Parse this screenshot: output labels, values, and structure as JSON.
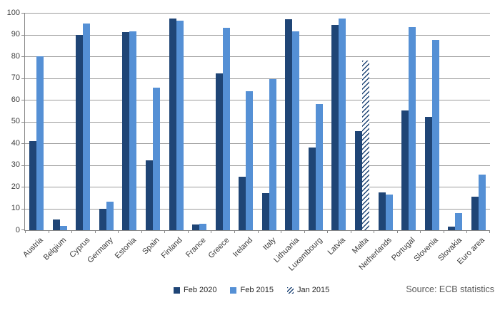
{
  "chart_data": {
    "type": "bar",
    "title": "",
    "xlabel": "",
    "ylabel": "",
    "categories": [
      "Austria",
      "Belgium",
      "Cyprus",
      "Germany",
      "Estonia",
      "Spain",
      "Finland",
      "France",
      "Greece",
      "Ireland",
      "Italy",
      "Lithuania",
      "Luxembourg",
      "Latvia",
      "Malta",
      "Netherlands",
      "Portugal",
      "Slovenia",
      "Slovakia",
      "Euro area"
    ],
    "series": [
      {
        "name": "Feb 2020",
        "color": "#1F4576",
        "pattern": "solid",
        "values": [
          41,
          5,
          90,
          10,
          91,
          32,
          97.5,
          2.5,
          72,
          24.5,
          17,
          97,
          38,
          94.5,
          45.5,
          17.5,
          55,
          52,
          1.5,
          15.5
        ]
      },
      {
        "name": "Feb 2015",
        "color": "#5590D5",
        "pattern": "solid",
        "values": [
          80,
          2,
          95,
          13,
          91.5,
          65.5,
          96.5,
          3,
          93,
          64,
          69.5,
          91.5,
          58,
          97.5,
          null,
          16.5,
          93.5,
          87.5,
          8,
          25.5
        ]
      },
      {
        "name": "Jan 2015",
        "color": "#1F4576",
        "pattern": "hatched",
        "values": [
          null,
          null,
          null,
          null,
          null,
          null,
          null,
          null,
          null,
          null,
          null,
          null,
          null,
          null,
          78,
          null,
          null,
          null,
          null,
          null
        ]
      }
    ],
    "ylim": [
      0,
      100
    ],
    "yticks": [
      0,
      10,
      20,
      30,
      40,
      50,
      60,
      70,
      80,
      90,
      100
    ],
    "grid": true,
    "legend_position": "bottom"
  },
  "source_label": "Source: ECB statistics",
  "colors": {
    "bar_dark": "#1F4576",
    "bar_light": "#5590D5",
    "gridline": "#9C9C9C",
    "axis": "#878787",
    "axis_text": "#3F3F3F",
    "legend_text": "#262626",
    "source_text": "#595959",
    "background": "#FFFFFF"
  }
}
